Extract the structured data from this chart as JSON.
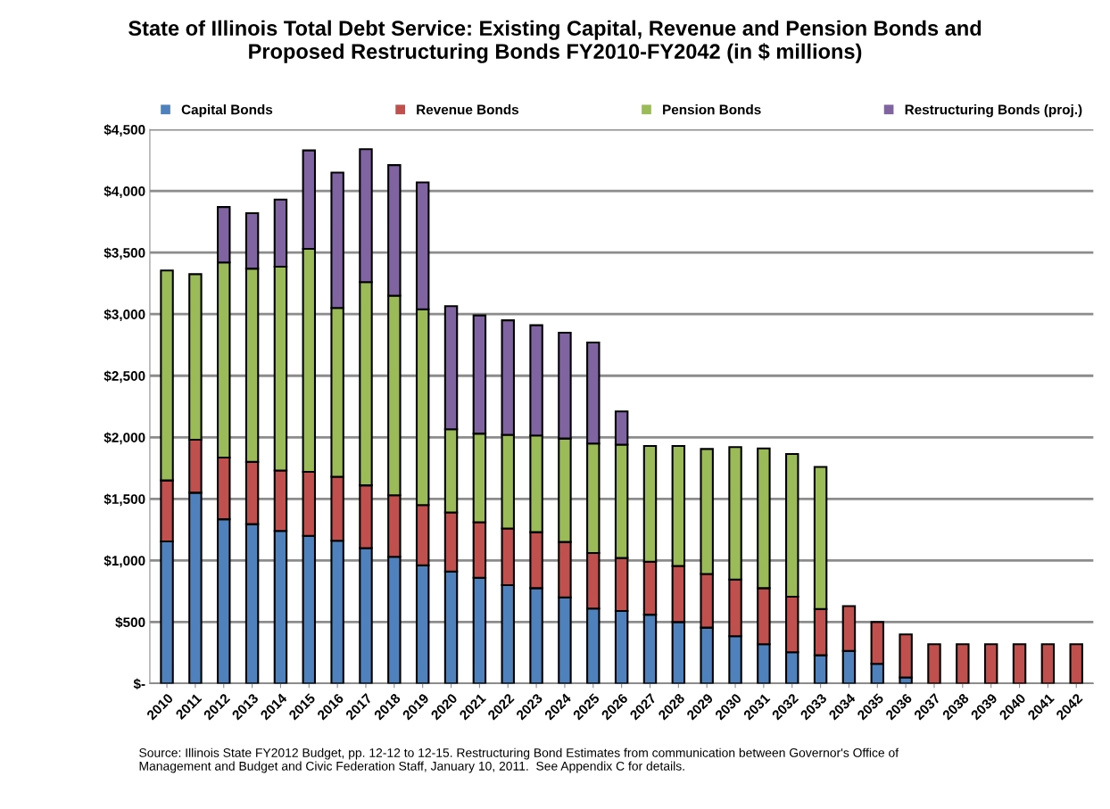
{
  "chart_data": {
    "type": "bar",
    "stacked": true,
    "title": "State of Illinois Total Debt Service: Existing Capital, Revenue and Pension Bonds and\nProposed Restructuring Bonds FY2010-FY2042 (in $ millions)",
    "categories": [
      "2010",
      "2011",
      "2012",
      "2013",
      "2014",
      "2015",
      "2016",
      "2017",
      "2018",
      "2019",
      "2020",
      "2021",
      "2022",
      "2023",
      "2024",
      "2025",
      "2026",
      "2027",
      "2028",
      "2029",
      "2030",
      "2031",
      "2032",
      "2033",
      "2034",
      "2035",
      "2036",
      "2037",
      "2038",
      "2039",
      "2040",
      "2041",
      "2042"
    ],
    "series": [
      {
        "name": "Capital Bonds",
        "color": "#4f81bd",
        "values": [
          1155,
          1550,
          1335,
          1295,
          1240,
          1200,
          1160,
          1100,
          1030,
          960,
          910,
          860,
          800,
          775,
          700,
          610,
          590,
          560,
          500,
          455,
          385,
          320,
          255,
          230,
          265,
          160,
          50,
          null,
          null,
          null,
          null,
          null,
          null
        ]
      },
      {
        "name": "Revenue Bonds",
        "color": "#c0504d",
        "values": [
          495,
          430,
          500,
          505,
          490,
          520,
          520,
          510,
          500,
          490,
          480,
          450,
          460,
          455,
          450,
          450,
          430,
          430,
          455,
          435,
          460,
          455,
          450,
          375,
          365,
          340,
          350,
          320,
          320,
          320,
          320,
          320,
          320
        ]
      },
      {
        "name": "Pension Bonds",
        "color": "#9bbb59",
        "values": [
          1705,
          1345,
          1585,
          1570,
          1655,
          1810,
          1370,
          1650,
          1620,
          1590,
          675,
          720,
          760,
          785,
          840,
          890,
          920,
          940,
          975,
          1015,
          1075,
          1135,
          1160,
          1155,
          null,
          null,
          null,
          null,
          null,
          null,
          null,
          null,
          null
        ]
      },
      {
        "name": "Restructuring Bonds (proj.)",
        "color": "#8064a2",
        "values": [
          null,
          null,
          450,
          450,
          545,
          800,
          1100,
          1080,
          1060,
          1030,
          1000,
          960,
          930,
          895,
          860,
          820,
          270,
          null,
          null,
          null,
          null,
          null,
          null,
          null,
          null,
          null,
          null,
          null,
          null,
          null,
          null,
          null,
          null
        ]
      }
    ],
    "ylim": [
      0,
      4500
    ],
    "yticks": [
      {
        "value": 0,
        "label": "$-"
      },
      {
        "value": 500,
        "label": "$500"
      },
      {
        "value": 1000,
        "label": "$1,000"
      },
      {
        "value": 1500,
        "label": "$1,500"
      },
      {
        "value": 2000,
        "label": "$2,000"
      },
      {
        "value": 2500,
        "label": "$2,500"
      },
      {
        "value": 3000,
        "label": "$3,000"
      },
      {
        "value": 3500,
        "label": "$3,500"
      },
      {
        "value": 4000,
        "label": "$4,000"
      },
      {
        "value": 4500,
        "label": "$4,500"
      }
    ],
    "grid": "y",
    "legend": "top",
    "annotations": [
      "Source: Illinois State FY2012 Budget, pp. 12-12 to 12-15. Restructuring Bond Estimates from communication between Governor's Office of\nManagement and Budget and Civic Federation Staff, January 10, 2011.  See Appendix C for details."
    ]
  }
}
